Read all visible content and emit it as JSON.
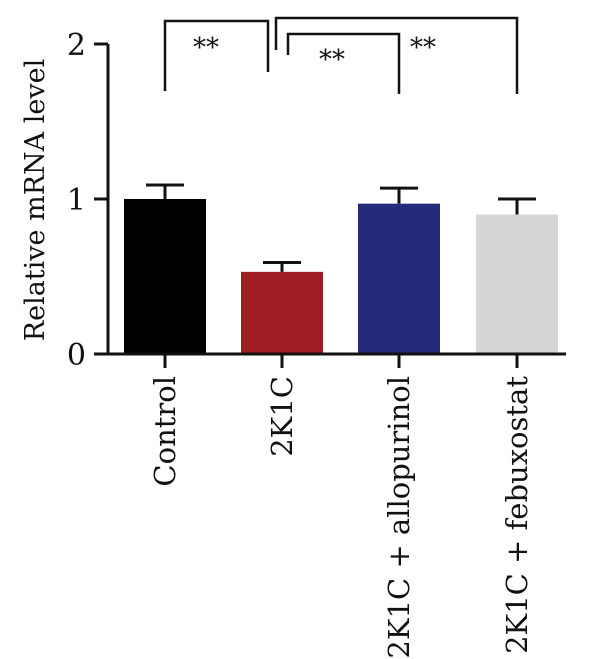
{
  "chart_data": {
    "type": "bar",
    "title": "",
    "xlabel": "",
    "ylabel": "Relative mRNA level",
    "ylim": [
      0,
      2
    ],
    "yticks": [
      "0",
      "1",
      "2"
    ],
    "grid": false,
    "categories": [
      "Control",
      "2K1C",
      "2K1C + allopurinol",
      "2K1C + febuxostat"
    ],
    "values": [
      1.0,
      0.53,
      0.97,
      0.9
    ],
    "errors": [
      0.09,
      0.06,
      0.1,
      0.1
    ],
    "colors": [
      "#000000",
      "#a21c23",
      "#262a7a",
      "#d6d6d6"
    ],
    "significance": [
      {
        "from": 0,
        "to": 1,
        "label": "**"
      },
      {
        "from": 1,
        "to": 2,
        "label": "**"
      },
      {
        "from": 1,
        "to": 3,
        "label": "**"
      }
    ]
  }
}
